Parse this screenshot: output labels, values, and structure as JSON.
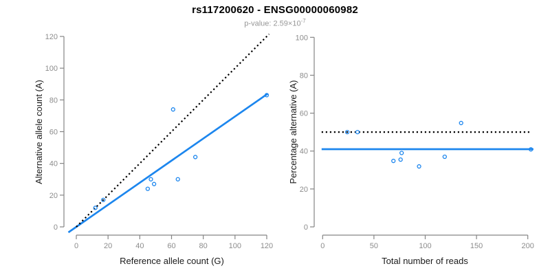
{
  "header": {
    "title": "rs117200620 - ENSG00000060982",
    "subtitle_base": "p-value: 2.59×10",
    "subtitle_exponent": "-7"
  },
  "colors": {
    "point_blue": "#1C86EE",
    "fit_line_blue": "#1C86EE",
    "dotted_line_black": "#000000",
    "axis_gray": "#848484",
    "tick_label_gray": "#8c8c8c",
    "axis_title_dark": "#1a1a1a",
    "subtitle_gray": "#969696"
  },
  "chart_data": [
    {
      "type": "scatter",
      "xlabel": "Reference allele count (G)",
      "ylabel": "Alternative allele count (A)",
      "xlim": [
        0,
        120
      ],
      "ylim": [
        0,
        120
      ],
      "xticks": [
        0,
        20,
        40,
        60,
        80,
        100,
        120
      ],
      "yticks": [
        0,
        20,
        40,
        60,
        80,
        100,
        120
      ],
      "grid": false,
      "point_color": "#1C86EE",
      "points": [
        [
          12,
          12
        ],
        [
          17,
          17
        ],
        [
          45,
          24
        ],
        [
          47,
          30
        ],
        [
          49,
          27
        ],
        [
          61,
          74
        ],
        [
          64,
          30
        ],
        [
          75,
          44
        ],
        [
          120,
          83
        ]
      ],
      "lines": [
        {
          "id": "fit-line",
          "meaning": "regression fit, slope 0.696 intercept 0",
          "style": "solid",
          "width": 2.7,
          "color": "#1C86EE",
          "from": [
            -5,
            -3.48
          ],
          "to": [
            120.6,
            83.9
          ]
        },
        {
          "id": "identity-line",
          "meaning": "y = x expected 50/50 line",
          "style": "dotted",
          "width": 2.2,
          "color": "#000000",
          "from": [
            0,
            0
          ],
          "to": [
            121.5,
            121.5
          ]
        }
      ]
    },
    {
      "type": "scatter",
      "xlabel": "Total number of reads",
      "ylabel": "Percentage alternative (A)",
      "xlim": [
        0,
        200
      ],
      "ylim": [
        0,
        100
      ],
      "xticks": [
        0,
        50,
        100,
        150,
        200
      ],
      "yticks": [
        0,
        20,
        40,
        60,
        80,
        100
      ],
      "grid": false,
      "point_color": "#1C86EE",
      "points": [
        [
          24,
          50
        ],
        [
          34,
          50
        ],
        [
          69,
          34.8
        ],
        [
          76,
          35.5
        ],
        [
          77,
          39
        ],
        [
          94,
          31.9
        ],
        [
          119,
          37
        ],
        [
          135,
          54.8
        ],
        [
          203,
          40.9
        ]
      ],
      "lines": [
        {
          "id": "fit-line",
          "meaning": "mean alternative percentage 41.0%",
          "style": "solid",
          "width": 2.7,
          "color": "#1C86EE",
          "from": [
            -1,
            41.0
          ],
          "to": [
            205.5,
            41.0
          ]
        },
        {
          "id": "expected-line",
          "meaning": "expected 50% line",
          "style": "dotted",
          "width": 2.2,
          "color": "#000000",
          "from": [
            -1,
            50
          ],
          "to": [
            201.5,
            50
          ]
        }
      ]
    }
  ]
}
